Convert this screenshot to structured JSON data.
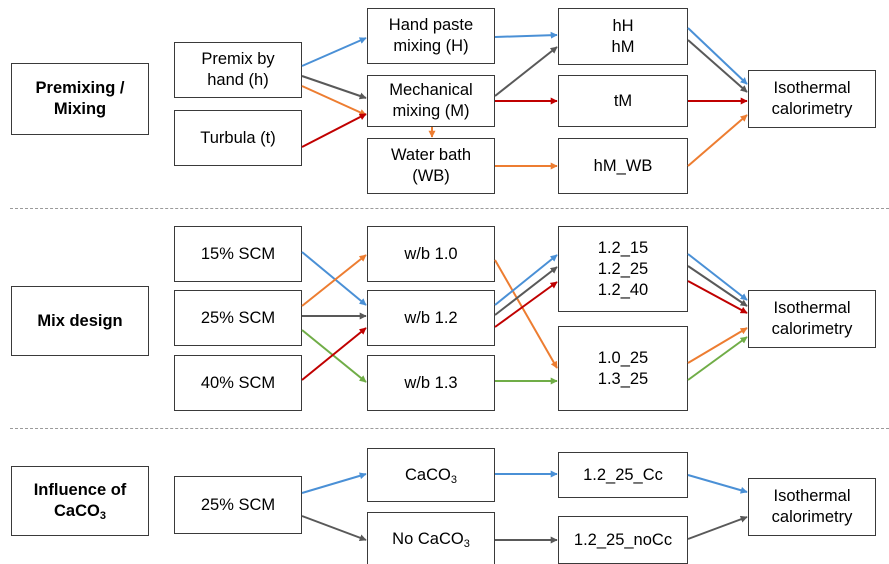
{
  "colors": {
    "blue": "#4a90d6",
    "gray": "#595959",
    "orange": "#ed7d31",
    "red": "#c00000",
    "green": "#70ad47"
  },
  "section1": {
    "label": "Premixing /\nMixing",
    "premix_hand": "Premix by\nhand (h)",
    "turbula": "Turbula (t)",
    "hand_paste": "Hand paste\nmixing (H)",
    "mechanical": "Mechanical\nmixing (M)",
    "water_bath": "Water bath\n(WB)",
    "hH_hM": "hH\nhM",
    "tM": "tM",
    "hM_WB": "hM_WB",
    "calorimetry": "Isothermal\ncalorimetry"
  },
  "section2": {
    "label": "Mix design",
    "scm15": "15% SCM",
    "scm25": "25% SCM",
    "scm40": "40% SCM",
    "wb10": "w/b 1.0",
    "wb12": "w/b 1.2",
    "wb13": "w/b 1.3",
    "out_a": "1.2_15\n1.2_25\n1.2_40",
    "out_b": "1.0_25\n1.3_25",
    "calorimetry": "Isothermal\ncalorimetry"
  },
  "section3": {
    "label_main": "Influence of",
    "label_chem": "CaCO",
    "label_sub": "3",
    "scm25": "25% SCM",
    "caco3_main": "CaCO",
    "caco3_sub": "3",
    "no_caco3_main": "No CaCO",
    "no_caco3_sub": "3",
    "out_cc": "1.2_25_Cc",
    "out_nocc": "1.2_25_noCc",
    "calorimetry": "Isothermal\ncalorimetry"
  }
}
